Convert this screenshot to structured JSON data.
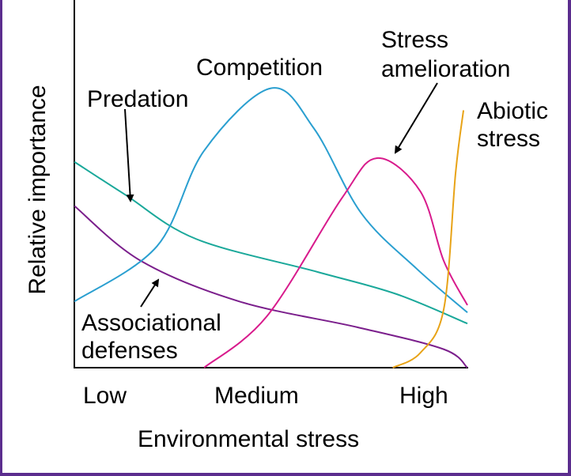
{
  "chart_data": {
    "type": "line",
    "title": "",
    "xlabel": "Environmental stress",
    "ylabel": "Relative importance",
    "x_tick_labels": [
      "Low",
      "Medium",
      "High"
    ],
    "xlim": [
      0,
      100
    ],
    "ylim": [
      0,
      100
    ],
    "grid": false,
    "legend": "none (direct labels)",
    "series": [
      {
        "name": "Predation",
        "color": "#1aa89a",
        "points": [
          [
            0,
            56
          ],
          [
            13,
            47
          ],
          [
            31,
            35
          ],
          [
            62,
            26
          ],
          [
            82,
            20
          ],
          [
            100,
            12
          ]
        ]
      },
      {
        "name": "Associational defenses",
        "color": "#7b1f8c",
        "points": [
          [
            0,
            44
          ],
          [
            17,
            29
          ],
          [
            42,
            18
          ],
          [
            72,
            11
          ],
          [
            94,
            5
          ],
          [
            100,
            0
          ]
        ]
      },
      {
        "name": "Competition",
        "color": "#2a9fd0",
        "points": [
          [
            0,
            18
          ],
          [
            21,
            33
          ],
          [
            33,
            59
          ],
          [
            50,
            76
          ],
          [
            61,
            65
          ],
          [
            73,
            42
          ],
          [
            87,
            27
          ],
          [
            100,
            15
          ]
        ]
      },
      {
        "name": "Stress amelioration",
        "color": "#d81b8c",
        "points": [
          [
            33,
            0
          ],
          [
            49,
            14
          ],
          [
            68,
            46
          ],
          [
            77,
            57
          ],
          [
            88,
            48
          ],
          [
            94,
            29
          ],
          [
            100,
            17
          ]
        ]
      },
      {
        "name": "Abiotic stress",
        "color": "#e8a317",
        "points": [
          [
            81,
            0
          ],
          [
            88,
            4
          ],
          [
            94,
            16
          ],
          [
            97,
            53
          ],
          [
            99,
            70
          ]
        ]
      }
    ],
    "labels": {
      "predation": "Predation",
      "competition": "Competition",
      "stress_amelioration_1": "Stress",
      "stress_amelioration_2": "amelioration",
      "abiotic_1": "Abiotic",
      "abiotic_2": "stress",
      "associational_1": "Associational",
      "associational_2": "defenses"
    }
  },
  "frame_color": "#5b2d8e"
}
